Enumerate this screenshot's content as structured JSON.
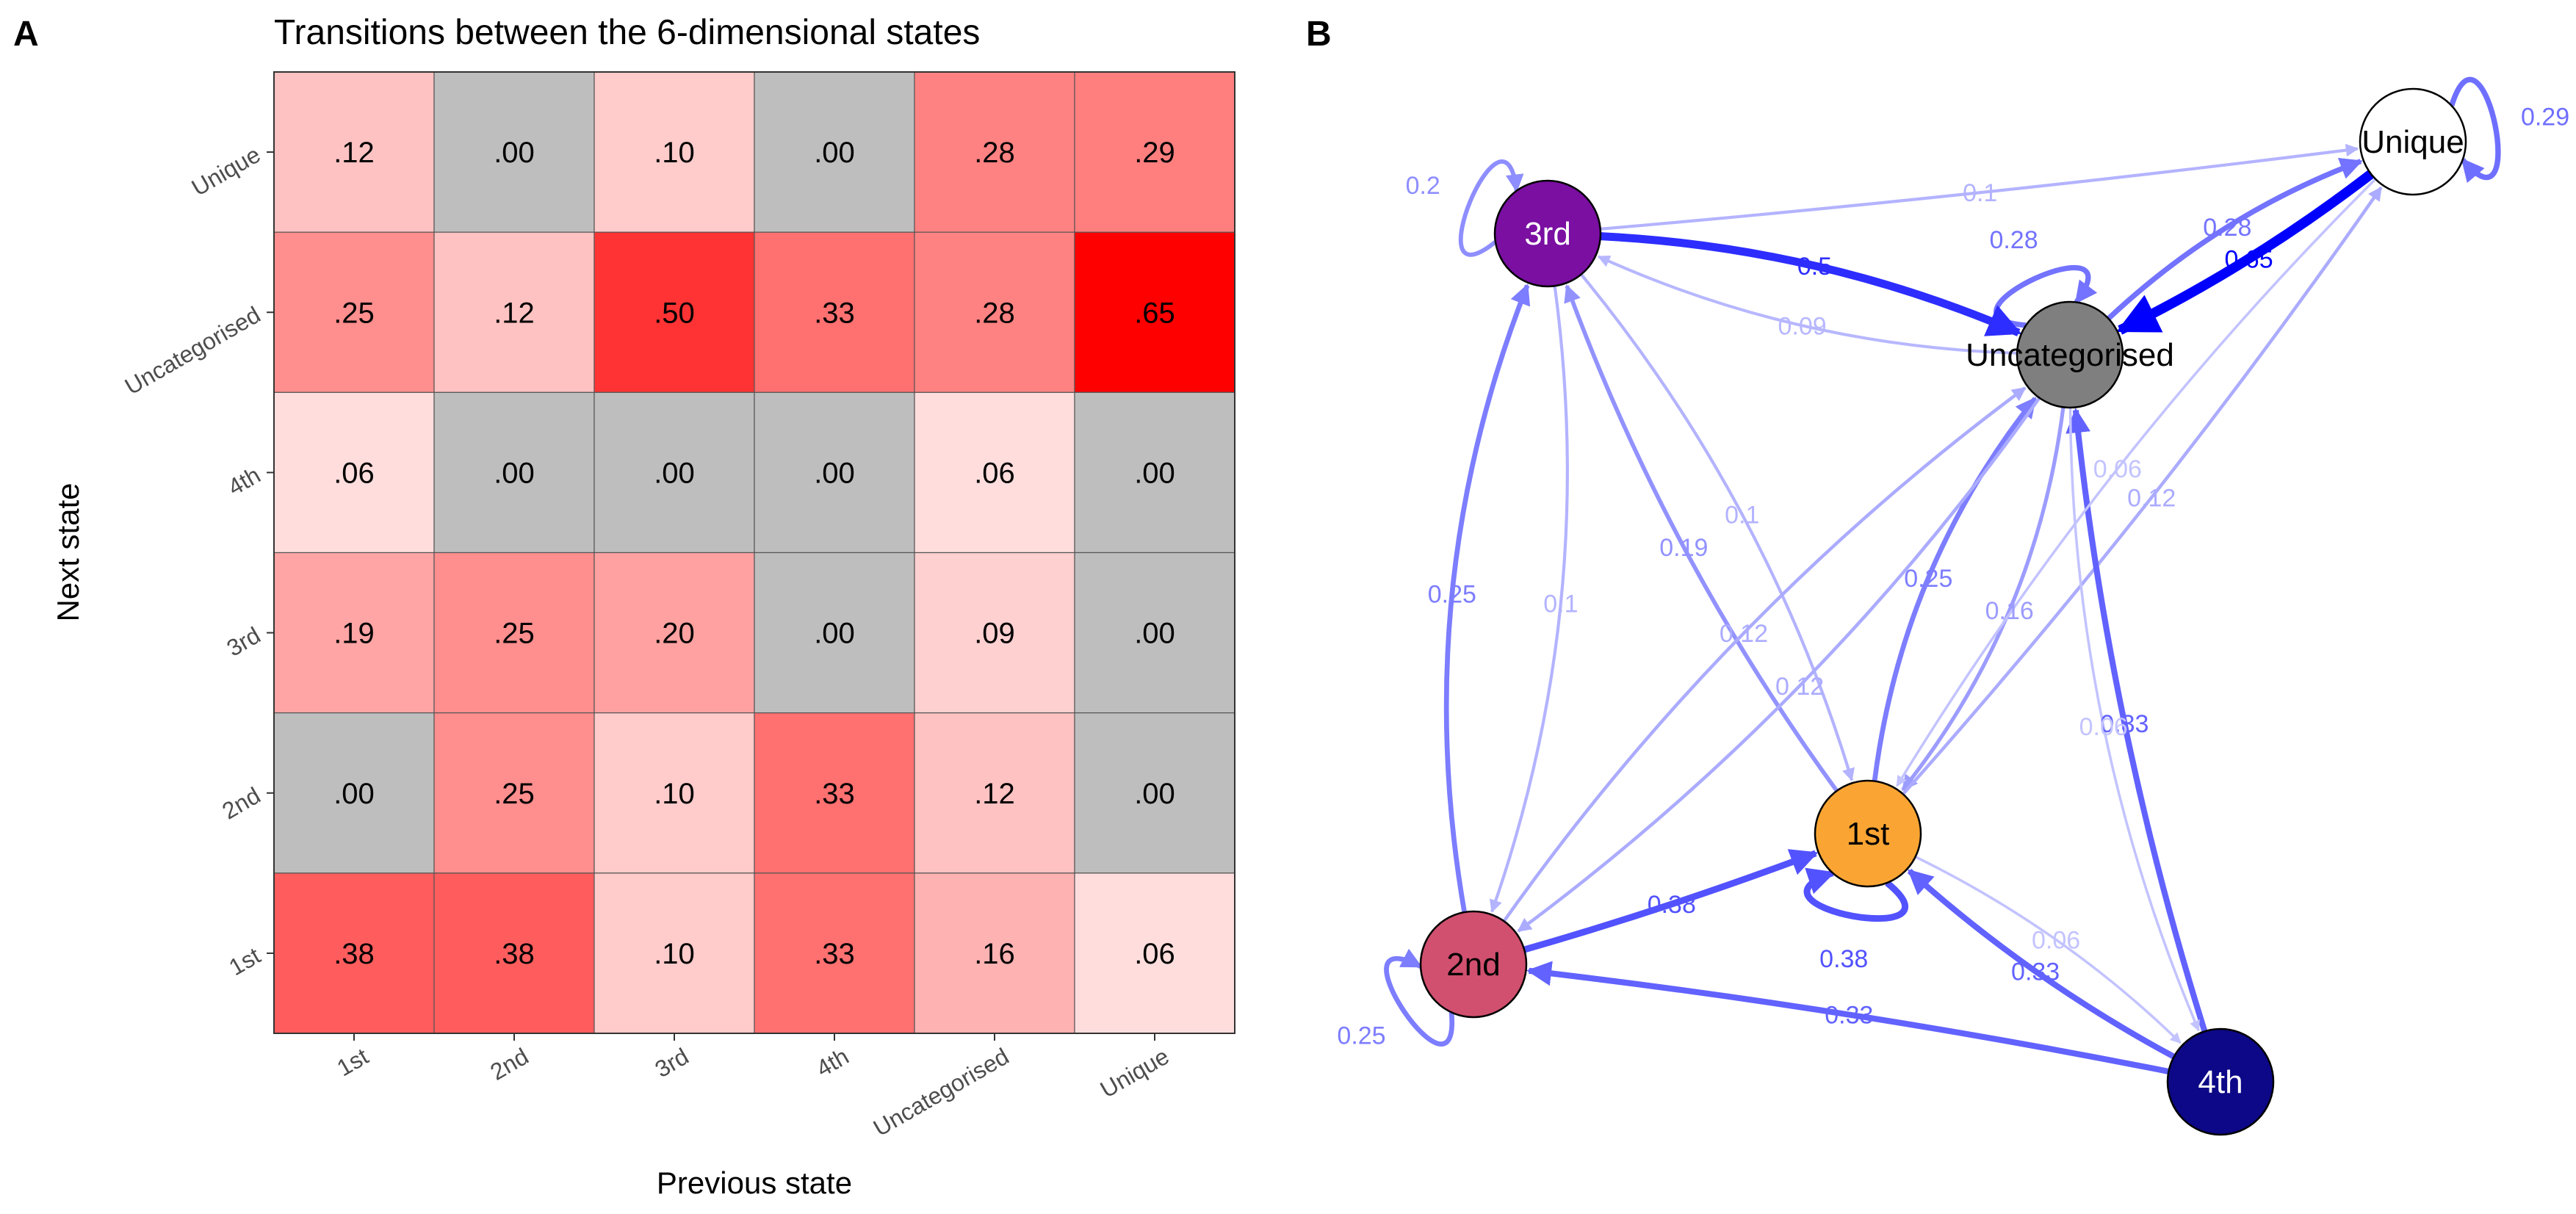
{
  "chart_data": [
    {
      "panel": "A",
      "type": "heatmap",
      "title": "Transitions between the 6-dimensional states",
      "xlabel": "Previous state",
      "ylabel": "Next state",
      "x_categories": [
        "1st",
        "2nd",
        "3rd",
        "4th",
        "Uncategorised",
        "Unique"
      ],
      "y_categories": [
        "Unique",
        "Uncategorised",
        "4th",
        "3rd",
        "2nd",
        "1st"
      ],
      "values": [
        [
          0.12,
          0.0,
          0.1,
          0.0,
          0.28,
          0.29
        ],
        [
          0.25,
          0.12,
          0.5,
          0.33,
          0.28,
          0.65
        ],
        [
          0.06,
          0.0,
          0.0,
          0.0,
          0.06,
          0.0
        ],
        [
          0.19,
          0.25,
          0.2,
          0.0,
          0.09,
          0.0
        ],
        [
          0.0,
          0.25,
          0.1,
          0.33,
          0.12,
          0.0
        ],
        [
          0.38,
          0.38,
          0.1,
          0.33,
          0.16,
          0.06
        ]
      ],
      "labels": [
        [
          ".12",
          ".00",
          ".10",
          ".00",
          ".28",
          ".29"
        ],
        [
          ".25",
          ".12",
          ".50",
          ".33",
          ".28",
          ".65"
        ],
        [
          ".06",
          ".00",
          ".00",
          ".00",
          ".06",
          ".00"
        ],
        [
          ".19",
          ".25",
          ".20",
          ".00",
          ".09",
          ".00"
        ],
        [
          ".00",
          ".25",
          ".10",
          ".33",
          ".12",
          ".00"
        ],
        [
          ".38",
          ".38",
          ".10",
          ".33",
          ".16",
          ".06"
        ]
      ],
      "zero_color": "#bebebe",
      "low_color": "#ffffff",
      "high_color": "#ff0000",
      "legend": "none"
    },
    {
      "panel": "B",
      "type": "network",
      "nodes": [
        {
          "id": "Unique",
          "label": "Unique",
          "fill": "#ffffff",
          "text_color": "#000000"
        },
        {
          "id": "3rd",
          "label": "3rd",
          "fill": "#7a0fa2",
          "text_color": "#ffffff"
        },
        {
          "id": "Uncategorised",
          "label": "Uncategorised",
          "fill": "#7f7f7f",
          "text_color": "#000000"
        },
        {
          "id": "1st",
          "label": "1st",
          "fill": "#faa533",
          "text_color": "#000000"
        },
        {
          "id": "2nd",
          "label": "2nd",
          "fill": "#d1506f",
          "text_color": "#000000"
        },
        {
          "id": "4th",
          "label": "4th",
          "fill": "#0d0887",
          "text_color": "#ffffff"
        }
      ],
      "edges": [
        {
          "from": "Unique",
          "to": "Unique",
          "weight": 0.29,
          "label": "0.29"
        },
        {
          "from": "3rd",
          "to": "3rd",
          "weight": 0.2,
          "label": "0.2"
        },
        {
          "from": "Uncategorised",
          "to": "Uncategorised",
          "weight": 0.28,
          "label": "0.28"
        },
        {
          "from": "1st",
          "to": "1st",
          "weight": 0.38,
          "label": "0.38"
        },
        {
          "from": "2nd",
          "to": "2nd",
          "weight": 0.25,
          "label": "0.25"
        },
        {
          "from": "3rd",
          "to": "Unique",
          "weight": 0.1,
          "label": "0.1"
        },
        {
          "from": "3rd",
          "to": "Uncategorised",
          "weight": 0.5,
          "label": "0.5"
        },
        {
          "from": "Uncategorised",
          "to": "Unique",
          "weight": 0.28,
          "label": "0.28"
        },
        {
          "from": "Unique",
          "to": "Uncategorised",
          "weight": 0.65,
          "label": "0.65"
        },
        {
          "from": "Uncategorised",
          "to": "3rd",
          "weight": 0.09,
          "label": "0.09"
        },
        {
          "from": "Uncategorised",
          "to": "1st",
          "weight": 0.16,
          "label": "0.16"
        },
        {
          "from": "1st",
          "to": "Uncategorised",
          "weight": 0.25,
          "label": "0.25"
        },
        {
          "from": "1st",
          "to": "Unique",
          "weight": 0.12,
          "label": "0.12"
        },
        {
          "from": "1st",
          "to": "3rd",
          "weight": 0.19,
          "label": "0.19"
        },
        {
          "from": "3rd",
          "to": "1st",
          "weight": 0.1,
          "label": "0.1"
        },
        {
          "from": "2nd",
          "to": "1st",
          "weight": 0.38,
          "label": "0.38"
        },
        {
          "from": "2nd",
          "to": "3rd",
          "weight": 0.25,
          "label": "0.25"
        },
        {
          "from": "3rd",
          "to": "2nd",
          "weight": 0.1,
          "label": "0.1"
        },
        {
          "from": "2nd",
          "to": "Uncategorised",
          "weight": 0.12,
          "label": "0.12"
        },
        {
          "from": "Uncategorised",
          "to": "2nd",
          "weight": 0.12,
          "label": "0.12"
        },
        {
          "from": "4th",
          "to": "Uncategorised",
          "weight": 0.33,
          "label": "0.33"
        },
        {
          "from": "4th",
          "to": "1st",
          "weight": 0.33,
          "label": "0.33"
        },
        {
          "from": "4th",
          "to": "2nd",
          "weight": 0.33,
          "label": "0.33"
        },
        {
          "from": "1st",
          "to": "4th",
          "weight": 0.06,
          "label": "0.06"
        },
        {
          "from": "Uncategorised",
          "to": "4th",
          "weight": 0.06,
          "label": "0.06"
        },
        {
          "from": "Unique",
          "to": "1st",
          "weight": 0.06,
          "label": "0.06"
        }
      ],
      "edge_color": "#0000ff"
    }
  ],
  "panels": {
    "a_letter": "A",
    "b_letter": "B"
  }
}
